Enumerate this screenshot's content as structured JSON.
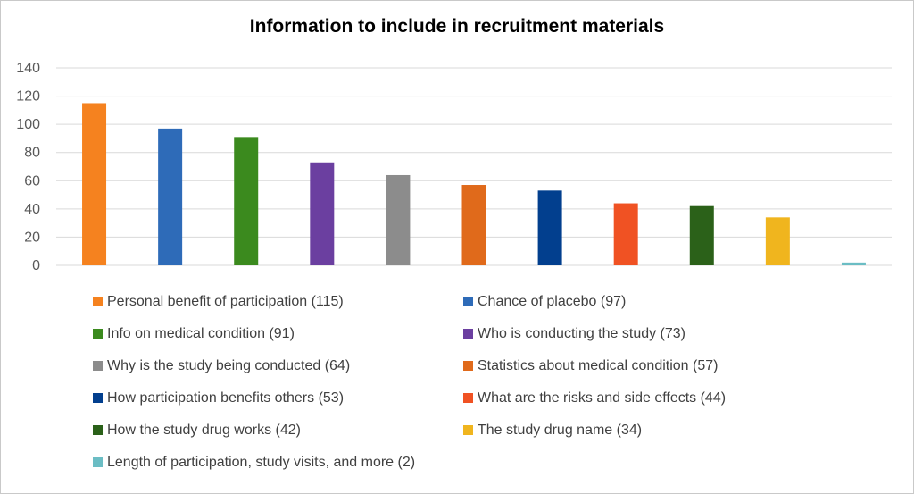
{
  "chart_data": {
    "type": "bar",
    "title": "Information to include in recruitment materials",
    "xlabel": "",
    "ylabel": "",
    "ylim": [
      0,
      140
    ],
    "yticks": [
      0,
      20,
      40,
      60,
      80,
      100,
      120,
      140
    ],
    "grid": true,
    "legend_position": "bottom",
    "categories": [
      "Personal benefit of participation (115)",
      "Chance of placebo (97)",
      "Info on medical condition (91)",
      "Who is conducting the study (73)",
      "Why is the study being conducted (64)",
      "Statistics about medical condition (57)",
      "How participation benefits others (53)",
      "What are the risks and side effects (44)",
      "How the study drug works (42)",
      "The study drug name (34)",
      "Length of participation, study visits, and more (2)"
    ],
    "values": [
      115,
      97,
      91,
      73,
      64,
      57,
      53,
      44,
      42,
      34,
      2
    ],
    "colors": [
      "#f5821f",
      "#2e6bb8",
      "#3b8a1e",
      "#6b3fa0",
      "#8c8c8c",
      "#e06a1b",
      "#023f8e",
      "#f05223",
      "#2b6119",
      "#f0b51e",
      "#6bbdc4"
    ]
  }
}
